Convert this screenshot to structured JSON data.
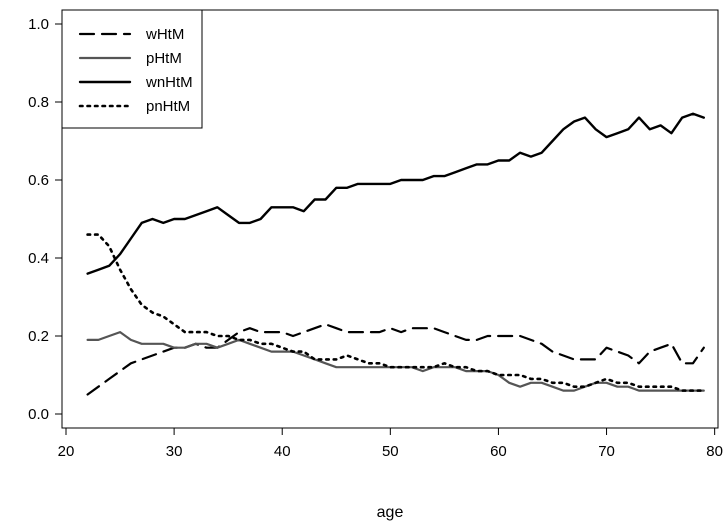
{
  "chart_data": {
    "type": "line",
    "xlabel": "age",
    "ylabel": "",
    "xlim": [
      20,
      80
    ],
    "ylim": [
      0.0,
      1.0
    ],
    "x_ticks": [
      "20",
      "30",
      "40",
      "50",
      "60",
      "70",
      "80"
    ],
    "y_ticks": [
      "0.0",
      "0.2",
      "0.4",
      "0.6",
      "0.8",
      "1.0"
    ],
    "legend_position": "top-left",
    "grid": false,
    "x": [
      22,
      23,
      24,
      25,
      26,
      27,
      28,
      29,
      30,
      31,
      32,
      33,
      34,
      35,
      36,
      37,
      38,
      39,
      40,
      41,
      42,
      43,
      44,
      45,
      46,
      47,
      48,
      49,
      50,
      51,
      52,
      53,
      54,
      55,
      56,
      57,
      58,
      59,
      60,
      61,
      62,
      63,
      64,
      65,
      66,
      67,
      68,
      69,
      70,
      71,
      72,
      73,
      74,
      75,
      76,
      77,
      78,
      79
    ],
    "series": [
      {
        "name": "wHtM",
        "style": "dashed",
        "color": "#000000",
        "values": [
          0.05,
          0.07,
          0.09,
          0.11,
          0.13,
          0.14,
          0.15,
          0.16,
          0.17,
          0.17,
          0.18,
          0.17,
          0.17,
          0.19,
          0.21,
          0.22,
          0.21,
          0.21,
          0.21,
          0.2,
          0.21,
          0.22,
          0.23,
          0.22,
          0.21,
          0.21,
          0.21,
          0.21,
          0.22,
          0.21,
          0.22,
          0.22,
          0.22,
          0.21,
          0.2,
          0.19,
          0.19,
          0.2,
          0.2,
          0.2,
          0.2,
          0.19,
          0.18,
          0.16,
          0.15,
          0.14,
          0.14,
          0.14,
          0.17,
          0.16,
          0.15,
          0.13,
          0.16,
          0.17,
          0.18,
          0.13,
          0.13,
          0.17
        ]
      },
      {
        "name": "pHtM",
        "style": "solid-gray",
        "color": "#555555",
        "values": [
          0.19,
          0.19,
          0.2,
          0.21,
          0.19,
          0.18,
          0.18,
          0.18,
          0.17,
          0.17,
          0.18,
          0.18,
          0.17,
          0.18,
          0.19,
          0.18,
          0.17,
          0.16,
          0.16,
          0.16,
          0.15,
          0.14,
          0.13,
          0.12,
          0.12,
          0.12,
          0.12,
          0.12,
          0.12,
          0.12,
          0.12,
          0.11,
          0.12,
          0.12,
          0.12,
          0.11,
          0.11,
          0.11,
          0.1,
          0.08,
          0.07,
          0.08,
          0.08,
          0.07,
          0.06,
          0.06,
          0.07,
          0.08,
          0.08,
          0.07,
          0.07,
          0.06,
          0.06,
          0.06,
          0.06,
          0.06,
          0.06,
          0.06
        ]
      },
      {
        "name": "wnHtM",
        "style": "solid",
        "color": "#000000",
        "values": [
          0.36,
          0.37,
          0.38,
          0.41,
          0.45,
          0.49,
          0.5,
          0.49,
          0.5,
          0.5,
          0.51,
          0.52,
          0.53,
          0.51,
          0.49,
          0.49,
          0.5,
          0.53,
          0.53,
          0.53,
          0.52,
          0.55,
          0.55,
          0.58,
          0.58,
          0.59,
          0.59,
          0.59,
          0.59,
          0.6,
          0.6,
          0.6,
          0.61,
          0.61,
          0.62,
          0.63,
          0.64,
          0.64,
          0.65,
          0.65,
          0.67,
          0.66,
          0.67,
          0.7,
          0.73,
          0.75,
          0.76,
          0.73,
          0.71,
          0.72,
          0.73,
          0.76,
          0.73,
          0.74,
          0.72,
          0.76,
          0.77,
          0.76
        ]
      },
      {
        "name": "pnHtM",
        "style": "dotted",
        "color": "#000000",
        "values": [
          0.46,
          0.46,
          0.43,
          0.37,
          0.32,
          0.28,
          0.26,
          0.25,
          0.23,
          0.21,
          0.21,
          0.21,
          0.2,
          0.2,
          0.19,
          0.19,
          0.18,
          0.18,
          0.17,
          0.16,
          0.16,
          0.14,
          0.14,
          0.14,
          0.15,
          0.14,
          0.13,
          0.13,
          0.12,
          0.12,
          0.12,
          0.12,
          0.12,
          0.13,
          0.12,
          0.12,
          0.11,
          0.11,
          0.1,
          0.1,
          0.1,
          0.09,
          0.09,
          0.08,
          0.08,
          0.07,
          0.07,
          0.08,
          0.09,
          0.08,
          0.08,
          0.07,
          0.07,
          0.07,
          0.07,
          0.06,
          0.06,
          0.06
        ]
      }
    ]
  }
}
